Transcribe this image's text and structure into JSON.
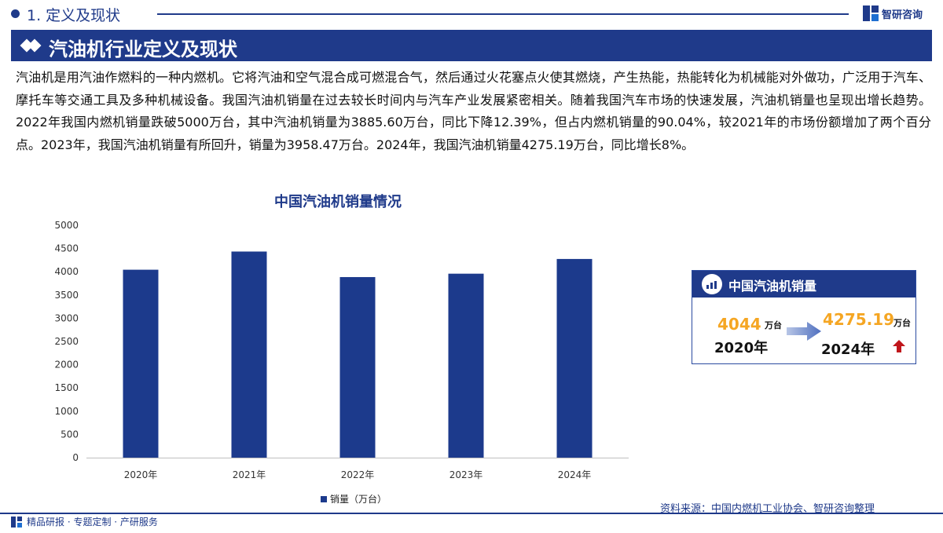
{
  "header": {
    "section_title": "1. 定义及现状",
    "brand": "智研咨询"
  },
  "banner": {
    "title": "汽油机行业定义及现状"
  },
  "paragraph": "汽油机是用汽油作燃料的一种内燃机。它将汽油和空气混合成可燃混合气，然后通过火花塞点火使其燃烧，产生热能，热能转化为机械能对外做功，广泛用于汽车、摩托车等交通工具及多种机械设备。我国汽油机销量在过去较长时间内与汽车产业发展紧密相关。随着我国汽车市场的快速发展，汽油机销量也呈现出增长趋势。2022年我国内燃机销量跌破5000万台，其中汽油机销量为3885.60万台，同比下降12.39%，但占内燃机销量的90.04%，较2021年的市场份额增加了两个百分点。2023年，我国汽油机销量有所回升，销量为3958.47万台。2024年，我国汽油机销量4275.19万台，同比增长8%。",
  "chart_data": {
    "type": "bar",
    "title": "中国汽油机销量情况",
    "categories": [
      "2020年",
      "2021年",
      "2022年",
      "2023年",
      "2024年"
    ],
    "series": [
      {
        "name": "销量（万台）",
        "values": [
          4044,
          4435,
          3885.6,
          3958.47,
          4275.19
        ]
      }
    ],
    "ylim": [
      0,
      5000
    ],
    "yticks": [
      0,
      500,
      1000,
      1500,
      2000,
      2500,
      3000,
      3500,
      4000,
      4500,
      5000
    ],
    "grid": false,
    "legend": "bottom",
    "color": "#1c3a8c"
  },
  "card": {
    "title": "中国汽油机销量",
    "from_value": "4044",
    "from_unit": "万台",
    "from_year": "2020年",
    "to_value": "4275.19",
    "to_unit": "万台",
    "to_year": "2024年"
  },
  "source": "资料来源：中国内燃机工业协会、智研咨询整理",
  "footer": "精品研报 · 专题定制 · 产研服务"
}
